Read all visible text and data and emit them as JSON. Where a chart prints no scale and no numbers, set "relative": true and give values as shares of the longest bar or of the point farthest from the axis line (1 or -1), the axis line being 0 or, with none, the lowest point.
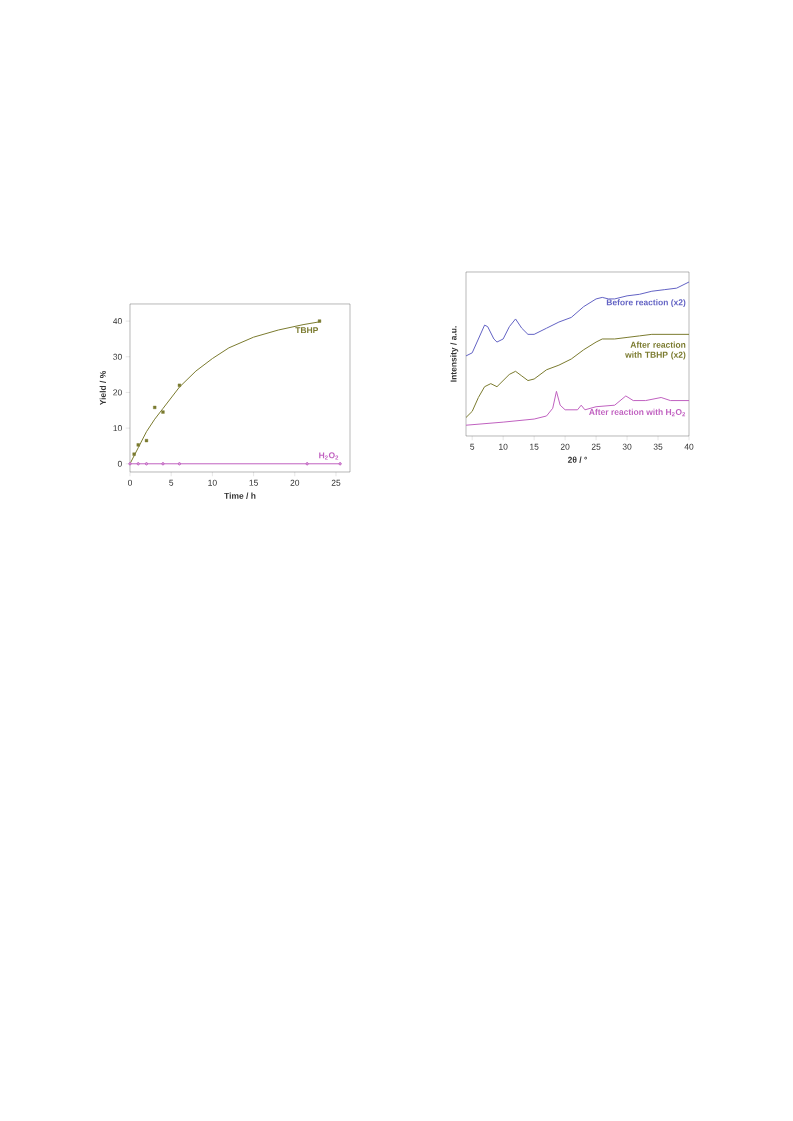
{
  "chart_data": [
    {
      "type": "line",
      "xlabel": "Time / h",
      "ylabel": "Yield / %",
      "xlim": [
        0,
        26.7
      ],
      "ylim": [
        -2.3,
        44.8
      ],
      "xticks": [
        0,
        5,
        10,
        15,
        20,
        25
      ],
      "yticks": [
        0,
        10,
        20,
        30,
        40
      ],
      "grid": false,
      "series": [
        {
          "name": "TBHP",
          "type": "scatter",
          "marker": "square",
          "color": "#7a7a2e",
          "x": [
            0.5,
            1,
            2,
            3,
            4,
            6,
            23
          ],
          "values": [
            2.7,
            5.3,
            6.5,
            15.8,
            14.5,
            22,
            40
          ]
        },
        {
          "type": "line",
          "marker": "none",
          "color": "#7a7a2e",
          "x": [
            0,
            1,
            2,
            3,
            4,
            6,
            8,
            10,
            12,
            15,
            18,
            21,
            23
          ],
          "values": [
            0,
            4.5,
            9,
            12.5,
            15.5,
            21.5,
            26,
            29.5,
            32.5,
            35.5,
            37.5,
            39,
            39.8
          ]
        },
        {
          "name": "H$_{2}$O$_{2}$",
          "type": "line",
          "marker": "circle",
          "color": "#c060c0",
          "x": [
            0,
            1,
            2,
            4,
            6,
            21.5,
            25.5
          ],
          "values": [
            0,
            0,
            0,
            0,
            0,
            0,
            0
          ]
        }
      ]
    },
    {
      "type": "line",
      "xlabel": "2θ / °",
      "ylabel": "Intensity / a.u.",
      "xlim": [
        4,
        40
      ],
      "xticks": [
        5,
        10,
        15,
        20,
        25,
        30,
        35,
        40
      ],
      "relative": true,
      "tick_labels": "x",
      "grid": false,
      "series": [
        {
          "name": "Before reaction (x2)",
          "color": "#6262c4",
          "x": [
            4,
            5,
            6,
            7,
            7.5,
            8.5,
            9,
            10,
            11,
            12,
            13,
            14,
            15,
            17,
            19,
            21,
            23,
            25,
            26,
            27,
            28,
            30,
            32,
            34,
            36,
            38,
            40
          ],
          "values": [
            0.52,
            0.54,
            0.63,
            0.72,
            0.71,
            0.63,
            0.61,
            0.63,
            0.71,
            0.76,
            0.7,
            0.66,
            0.66,
            0.7,
            0.74,
            0.77,
            0.84,
            0.89,
            0.9,
            0.89,
            0.89,
            0.91,
            0.92,
            0.94,
            0.95,
            0.96,
            1.0
          ]
        },
        {
          "name": "After reaction with TBHP (x2)",
          "color": "#7a7a2e",
          "x": [
            4,
            5,
            6,
            7,
            8,
            9,
            10,
            11,
            12,
            13,
            14,
            15,
            17,
            19,
            21,
            23,
            25,
            26,
            28,
            30,
            32,
            34,
            36,
            38,
            40
          ],
          "values": [
            0.12,
            0.16,
            0.25,
            0.32,
            0.34,
            0.32,
            0.36,
            0.4,
            0.42,
            0.39,
            0.36,
            0.37,
            0.43,
            0.46,
            0.5,
            0.56,
            0.61,
            0.63,
            0.63,
            0.64,
            0.65,
            0.66,
            0.66,
            0.66,
            0.66
          ]
        },
        {
          "name": "After reaction with H$_{2}$O$_{2}$",
          "color": "#c060c0",
          "x": [
            4,
            10,
            15,
            17,
            18,
            18.6,
            19.2,
            20,
            22,
            22.6,
            23.2,
            25,
            28,
            29.8,
            31,
            33,
            35.5,
            37,
            40
          ],
          "values": [
            0.07,
            0.09,
            0.11,
            0.13,
            0.18,
            0.29,
            0.2,
            0.17,
            0.17,
            0.2,
            0.17,
            0.19,
            0.2,
            0.26,
            0.23,
            0.23,
            0.25,
            0.23,
            0.23
          ]
        }
      ]
    }
  ]
}
